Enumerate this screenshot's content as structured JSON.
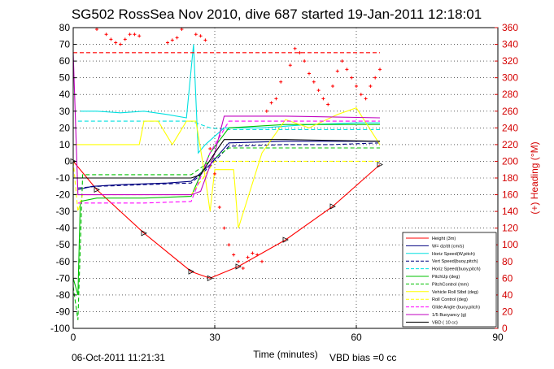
{
  "chart_data": {
    "type": "line",
    "title": "SG502 RossSea Nov 2010, dive 687 started 19-Jan-2011 12:18:01",
    "xlabel": "Time (minutes)",
    "ylabel_right": "(+) Heading (°M)",
    "xlim": [
      0,
      90
    ],
    "ylim": [
      -100,
      80
    ],
    "ylim_right": [
      0,
      360
    ],
    "x_ticks": [
      0,
      30,
      60,
      90
    ],
    "y_ticks": [
      -100,
      -90,
      -80,
      -70,
      -60,
      -50,
      -40,
      -30,
      -20,
      -10,
      0,
      10,
      20,
      30,
      40,
      50,
      60,
      70,
      80
    ],
    "y_ticks_right": [
      0,
      20,
      40,
      60,
      80,
      100,
      120,
      140,
      160,
      180,
      200,
      220,
      240,
      260,
      280,
      300,
      320,
      340,
      360
    ],
    "grid": true,
    "legend_position": "bottom-right",
    "footer_date": "06-Oct-2011 11:21:31",
    "footer_note": "VBD bias =0 cc",
    "series": [
      {
        "name": "Height (3m)",
        "color": "#ff0000",
        "style": "solid",
        "x": [
          0,
          5,
          15,
          25,
          29,
          35,
          45,
          55,
          65
        ],
        "y": [
          0,
          -17,
          -43,
          -66,
          -70,
          -63,
          -47,
          -27,
          -2
        ]
      },
      {
        "name": "W= dz/dt (cm/s)",
        "color": "#000080",
        "style": "solid",
        "x": [
          1,
          4,
          10,
          20,
          25,
          29,
          33,
          45,
          55,
          65
        ],
        "y": [
          -17,
          -15,
          -14,
          -13,
          -12,
          -2,
          11,
          12,
          12,
          12
        ]
      },
      {
        "name": "Horiz Speed(W,pitch)",
        "color": "#00e0e0",
        "style": "solid",
        "x": [
          1.5,
          5,
          10,
          15,
          20,
          24,
          25.5,
          26.5,
          28,
          32,
          40,
          50,
          60,
          65
        ],
        "y": [
          30,
          30,
          29,
          30,
          28,
          26,
          70,
          5,
          10,
          20,
          20,
          22,
          23,
          23
        ]
      },
      {
        "name": "Vert Speed(buoy,pitch)",
        "color": "#000080",
        "style": "dashed",
        "x": [
          1,
          5,
          15,
          25,
          29,
          33,
          45,
          55,
          65
        ],
        "y": [
          -16,
          -15,
          -14,
          -13,
          -3,
          9,
          10,
          10,
          11
        ]
      },
      {
        "name": "Horiz Speed(buoy,pitch)",
        "color": "#00e0e0",
        "style": "dashed",
        "x": [
          1,
          10,
          25,
          29,
          33,
          45,
          65
        ],
        "y": [
          24,
          24,
          24,
          20,
          19,
          19,
          19
        ]
      },
      {
        "name": "PitchUp (deg)",
        "color": "#00c000",
        "style": "solid",
        "x": [
          0,
          1,
          1.5,
          5,
          15,
          25,
          29,
          33,
          45,
          55,
          65
        ],
        "y": [
          -70,
          -80,
          -24,
          -22,
          -22,
          -21,
          5,
          20,
          22,
          22,
          22
        ]
      },
      {
        "name": "PitchControl (mm)",
        "color": "#00c000",
        "style": "dashed",
        "x": [
          0,
          1,
          2,
          10,
          25,
          29,
          33,
          45,
          65
        ],
        "y": [
          -75,
          -95,
          -8,
          -8,
          -8,
          0,
          8,
          8,
          8
        ]
      },
      {
        "name": "Vehicle Roll Stbd (deg)",
        "color": "#ffff00",
        "style": "solid",
        "x": [
          0,
          2,
          8,
          14,
          15,
          18,
          21,
          24,
          26,
          28,
          29,
          30,
          34,
          35,
          40,
          45,
          50,
          56,
          60,
          65
        ],
        "y": [
          10,
          10,
          10,
          10,
          24,
          24,
          10,
          24,
          24,
          -10,
          -30,
          -5,
          -5,
          -40,
          5,
          25,
          20,
          28,
          32,
          10
        ]
      },
      {
        "name": "Roll Control (deg)",
        "color": "#ffff00",
        "style": "dashed",
        "x": [
          0,
          1,
          2,
          25,
          30,
          45,
          65
        ],
        "y": [
          0,
          -30,
          -20,
          -20,
          0,
          0,
          0
        ]
      },
      {
        "name": "Glide Angle (buoy,pitch)",
        "color": "#ff00ff",
        "style": "dashed",
        "x": [
          1,
          5,
          15,
          25,
          29,
          33,
          45,
          55,
          65
        ],
        "y": [
          -25,
          -25,
          -25,
          -24,
          5,
          24,
          24,
          24,
          24
        ]
      },
      {
        "name": "1/5 Buoyancy (g)",
        "color": "#c000c0",
        "style": "solid",
        "x": [
          0,
          1,
          2,
          25,
          27,
          30,
          32,
          45,
          65
        ],
        "y": [
          65,
          -20,
          -20,
          -20,
          -18,
          5,
          27,
          27,
          26
        ]
      },
      {
        "name": "VBD ( 10 cc)",
        "color": "#000000",
        "style": "solid",
        "x": [
          0,
          1,
          2,
          25,
          27,
          30,
          32,
          45,
          65
        ],
        "y": [
          -10,
          -10,
          -10,
          -10,
          -8,
          5,
          13,
          13,
          12
        ]
      },
      {
        "name": "Heading",
        "axis": "right",
        "color": "#ff0000",
        "style": "marker",
        "x": [
          5,
          7,
          8,
          9,
          10,
          11,
          12,
          13,
          14,
          20,
          21,
          22,
          23,
          26,
          27,
          28,
          29,
          30,
          31,
          32,
          33,
          34,
          35,
          36,
          37,
          38,
          39,
          40,
          41,
          42,
          43,
          44,
          46,
          47,
          48,
          49,
          50,
          51,
          52,
          53,
          54,
          55,
          56,
          57,
          58,
          59,
          60,
          61,
          62,
          63,
          64,
          65
        ],
        "y": [
          358,
          352,
          346,
          342,
          340,
          346,
          352,
          352,
          350,
          342,
          345,
          348,
          358,
          352,
          350,
          345,
          215,
          185,
          145,
          120,
          100,
          88,
          80,
          72,
          85,
          90,
          88,
          80,
          260,
          270,
          275,
          295,
          315,
          335,
          330,
          320,
          305,
          295,
          285,
          275,
          268,
          290,
          308,
          320,
          310,
          300,
          290,
          280,
          275,
          290,
          300,
          310
        ]
      },
      {
        "name": "Heading ref",
        "axis": "right",
        "color": "#ff0000",
        "style": "dashed",
        "x": [
          0,
          65
        ],
        "y": [
          330,
          330
        ]
      }
    ]
  }
}
